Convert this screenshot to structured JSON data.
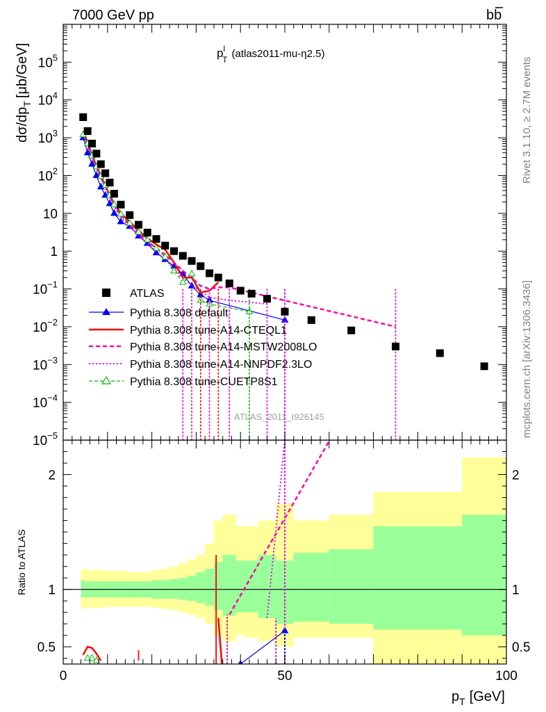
{
  "header": {
    "left": "7000 GeV pp",
    "right_main": "b",
    "right_bar": "b"
  },
  "side_labels": {
    "rivet": "Rivet 3.1.10, ≥ 2.7M events",
    "mcplots": "mcplots.cern.ch [arXiv:1306.3436]"
  },
  "watermark": "ATLAS_2011_I926145",
  "colors": {
    "data": "#000000",
    "default": "#0000ff",
    "cteql1": "#ff0000",
    "mstw": "#ff00aa",
    "nnpdf": "#ee00ee",
    "cuetp8s1": "#00bb00",
    "band_inner": "#99ff99",
    "band_outer": "#ffff99"
  },
  "chart_data": [
    {
      "type": "scatter",
      "log_y": true,
      "title": "p",
      "title_sup": "l",
      "title_sub": "T",
      "title_rest": "(atlas2011-mu-η2.5)",
      "ylabel": "dσ/dp",
      "ylabel_sub": "T",
      "ylabel_units": "[μb/GeV]",
      "xlim": [
        0,
        100
      ],
      "ylim": [
        1e-05,
        1000000
      ],
      "x_ticks": [
        0,
        50,
        100
      ],
      "y_ticks": [
        {
          "v": 100000,
          "base": "10",
          "exp": "5"
        },
        {
          "v": 10000,
          "base": "10",
          "exp": "4"
        },
        {
          "v": 1000,
          "base": "10",
          "exp": "3"
        },
        {
          "v": 100,
          "base": "10",
          "exp": "2"
        },
        {
          "v": 10,
          "base": "10",
          "exp": ""
        },
        {
          "v": 1,
          "base": "1",
          "exp": ""
        },
        {
          "v": 0.1,
          "base": "10",
          "exp": "−1"
        },
        {
          "v": 0.01,
          "base": "10",
          "exp": "−2"
        },
        {
          "v": 0.001,
          "base": "10",
          "exp": "−3"
        },
        {
          "v": 0.0001,
          "base": "10",
          "exp": "−4"
        },
        {
          "v": 1e-05,
          "base": "10",
          "exp": "−5"
        }
      ],
      "legend": [
        "ATLAS",
        "Pythia 8.308 default",
        "Pythia 8.308 tune-A14-CTEQL1",
        "Pythia 8.308 tune-A14-MSTW2008LO",
        "Pythia 8.308 tune-A14-NNPDF2.3LO",
        "Pythia 8.308 tune-CUETP8S1"
      ],
      "data": {
        "name": "ATLAS",
        "x": [
          4.5,
          5.5,
          6.5,
          7.5,
          8.5,
          9.5,
          10.5,
          11.5,
          13,
          15,
          17,
          19,
          21,
          23,
          25,
          27,
          29,
          31,
          33,
          35,
          37.5,
          40,
          42.5,
          46,
          50,
          56,
          65,
          75,
          85,
          95
        ],
        "y": [
          3500,
          1500,
          700,
          380,
          200,
          115,
          65,
          33,
          17,
          9,
          5,
          3.1,
          2.1,
          1.4,
          1.0,
          0.75,
          0.55,
          0.4,
          0.26,
          0.2,
          0.14,
          0.09,
          0.075,
          0.055,
          0.025,
          0.015,
          0.008,
          0.003,
          0.002,
          0.0009
        ]
      },
      "series": [
        {
          "name": "Pythia 8.308 default",
          "key": "default",
          "x": [
            4.5,
            5.5,
            6.5,
            7.5,
            8.5,
            9.5,
            10.5,
            11.5,
            13,
            15,
            17,
            19,
            21,
            23,
            25,
            27,
            29,
            31,
            33,
            50
          ],
          "y": [
            1000,
            400,
            200,
            100,
            50,
            30,
            18,
            10,
            6,
            4.5,
            2.5,
            1.6,
            0.9,
            0.6,
            0.4,
            0.25,
            0.12,
            0.07,
            0.05,
            0.015
          ]
        },
        {
          "name": "Pythia 8.308 tune-A14-CTEQL1",
          "key": "cteql1",
          "x": [
            4.5,
            5.5,
            6.5,
            7.5,
            8.5,
            9.5,
            10.5,
            11.5,
            13,
            15,
            17,
            19,
            21,
            23,
            25,
            27,
            29,
            31,
            33,
            35
          ],
          "y": [
            1500,
            750,
            350,
            180,
            100,
            55,
            30,
            18,
            10,
            6,
            3.5,
            2.2,
            1.5,
            1.1,
            0.5,
            0.2,
            0.2,
            0.08,
            0.09,
            0.15
          ]
        },
        {
          "name": "Pythia 8.308 tune-A14-MSTW2008LO",
          "key": "mstw",
          "x": [
            4.5,
            5.5,
            6.5,
            7.5,
            8.5,
            9.5,
            10.5,
            11.5,
            13,
            15,
            17,
            19,
            21,
            23,
            25,
            27,
            29,
            31,
            33,
            35,
            37.5,
            75
          ],
          "y": [
            1300,
            650,
            320,
            160,
            90,
            50,
            28,
            16,
            9,
            5,
            3,
            1.8,
            1.2,
            0.8,
            0.5,
            0.3,
            0.2,
            0.12,
            0.1,
            0.11,
            0.11,
            0.01
          ]
        },
        {
          "name": "Pythia 8.308 tune-A14-NNPDF2.3LO",
          "key": "nnpdf",
          "x": [
            4.5,
            5.5,
            6.5,
            7.5,
            8.5,
            9.5,
            10.5,
            11.5,
            13,
            15,
            17,
            19,
            21,
            23,
            25,
            27,
            29,
            31,
            33,
            37.5,
            46
          ],
          "y": [
            1200,
            600,
            300,
            150,
            85,
            48,
            27,
            15,
            8,
            4.5,
            2.7,
            1.6,
            1.0,
            0.6,
            0.35,
            0.2,
            0.12,
            0.09,
            0.06,
            0.05,
            0.04
          ]
        },
        {
          "name": "Pythia 8.308 tune-CUETP8S1",
          "key": "cuetp8s1",
          "x": [
            4.5,
            5.5,
            6.5,
            7.5,
            8.5,
            9.5,
            10.5,
            11.5,
            13,
            15,
            17,
            19,
            21,
            23,
            25,
            27,
            29,
            31,
            33,
            42
          ],
          "y": [
            1200,
            700,
            330,
            170,
            95,
            55,
            30,
            17,
            9.5,
            5.5,
            3.2,
            2.0,
            1.2,
            0.7,
            0.3,
            0.15,
            0.25,
            0.05,
            0.04,
            0.025
          ]
        }
      ]
    },
    {
      "type": "line",
      "ylabel": "Ratio to ATLAS",
      "xlabel": "p",
      "xlabel_sub": "T",
      "xlabel_units": "[GeV]",
      "xlim": [
        0,
        100
      ],
      "ylim": [
        0.35,
        2.3
      ],
      "x_ticks": [
        0,
        50,
        100
      ],
      "y_ticks": [
        0.5,
        1,
        2
      ],
      "y_tick_labels": [
        "0.5",
        "1",
        "2"
      ],
      "band_edges": [
        4,
        5,
        6,
        7,
        8,
        9,
        10,
        11,
        12,
        14,
        16,
        18,
        20,
        22,
        24,
        26,
        28,
        30,
        32,
        34,
        36,
        39,
        41,
        44,
        48,
        52,
        60,
        70,
        90,
        100
      ],
      "band_inner": [
        [
          0.93,
          1.08
        ],
        [
          0.93,
          1.07
        ],
        [
          0.93,
          1.07
        ],
        [
          0.93,
          1.07
        ],
        [
          0.93,
          1.07
        ],
        [
          0.93,
          1.07
        ],
        [
          0.93,
          1.07
        ],
        [
          0.93,
          1.07
        ],
        [
          0.93,
          1.07
        ],
        [
          0.93,
          1.07
        ],
        [
          0.93,
          1.07
        ],
        [
          0.93,
          1.07
        ],
        [
          0.92,
          1.08
        ],
        [
          0.92,
          1.08
        ],
        [
          0.92,
          1.09
        ],
        [
          0.91,
          1.1
        ],
        [
          0.9,
          1.12
        ],
        [
          0.88,
          1.15
        ],
        [
          0.86,
          1.18
        ],
        [
          0.82,
          1.24
        ],
        [
          0.77,
          1.3
        ],
        [
          0.8,
          1.25
        ],
        [
          0.8,
          1.25
        ],
        [
          0.75,
          1.3
        ],
        [
          0.7,
          1.25
        ],
        [
          0.72,
          1.32
        ],
        [
          0.7,
          1.35
        ],
        [
          0.65,
          1.55
        ],
        [
          0.6,
          1.65
        ]
      ],
      "band_outer": [
        [
          0.83,
          1.18
        ],
        [
          0.84,
          1.17
        ],
        [
          0.84,
          1.17
        ],
        [
          0.84,
          1.17
        ],
        [
          0.84,
          1.17
        ],
        [
          0.84,
          1.17
        ],
        [
          0.85,
          1.16
        ],
        [
          0.85,
          1.16
        ],
        [
          0.85,
          1.16
        ],
        [
          0.85,
          1.15
        ],
        [
          0.85,
          1.15
        ],
        [
          0.85,
          1.15
        ],
        [
          0.84,
          1.17
        ],
        [
          0.83,
          1.18
        ],
        [
          0.82,
          1.2
        ],
        [
          0.8,
          1.23
        ],
        [
          0.78,
          1.26
        ],
        [
          0.75,
          1.3
        ],
        [
          0.7,
          1.4
        ],
        [
          0.6,
          1.6
        ],
        [
          0.55,
          1.65
        ],
        [
          0.6,
          1.55
        ],
        [
          0.58,
          1.55
        ],
        [
          0.55,
          1.6
        ],
        [
          0.5,
          1.75
        ],
        [
          0.58,
          1.6
        ],
        [
          0.55,
          1.65
        ],
        [
          0.35,
          1.85
        ],
        [
          0.35,
          2.15
        ]
      ],
      "series": [
        {
          "name": "Pythia 8.308 tune-A14-CTEQL1",
          "key": "cteql1",
          "segments": [
            {
              "x": [
                4.5,
                5.5,
                6.5,
                7.5,
                8.5
              ],
              "y": [
                0.43,
                0.5,
                0.49,
                0.44,
                0.38
              ]
            },
            {
              "x": [
                35,
                35.8
              ],
              "y": [
                0.75,
                0.35
              ]
            }
          ]
        },
        {
          "name": "Pythia 8.308 tune-A14-MSTW2008LO",
          "key": "mstw",
          "segments": [
            {
              "x": [
                37.5,
                75
              ],
              "y": [
                0.78,
                3.3
              ]
            }
          ]
        },
        {
          "name": "Pythia 8.308 tune-A14-NNPDF2.3LO",
          "key": "nnpdf",
          "segments": [
            {
              "x": [
                46,
                50
              ],
              "y": [
                0.75,
                2.3
              ]
            }
          ]
        },
        {
          "name": "Pythia 8.308 default",
          "key": "default",
          "segments": [
            {
              "x": [
                40,
                50
              ],
              "y": [
                0.35,
                0.64
              ]
            }
          ]
        },
        {
          "name": "Pythia 8.308 tune-CUETP8S1",
          "key": "cuetp8s1",
          "segments": [
            {
              "x": [
                5.5,
                6.5,
                7.5
              ],
              "y": [
                0.4,
                0.4,
                0.38
              ]
            }
          ]
        }
      ]
    }
  ]
}
